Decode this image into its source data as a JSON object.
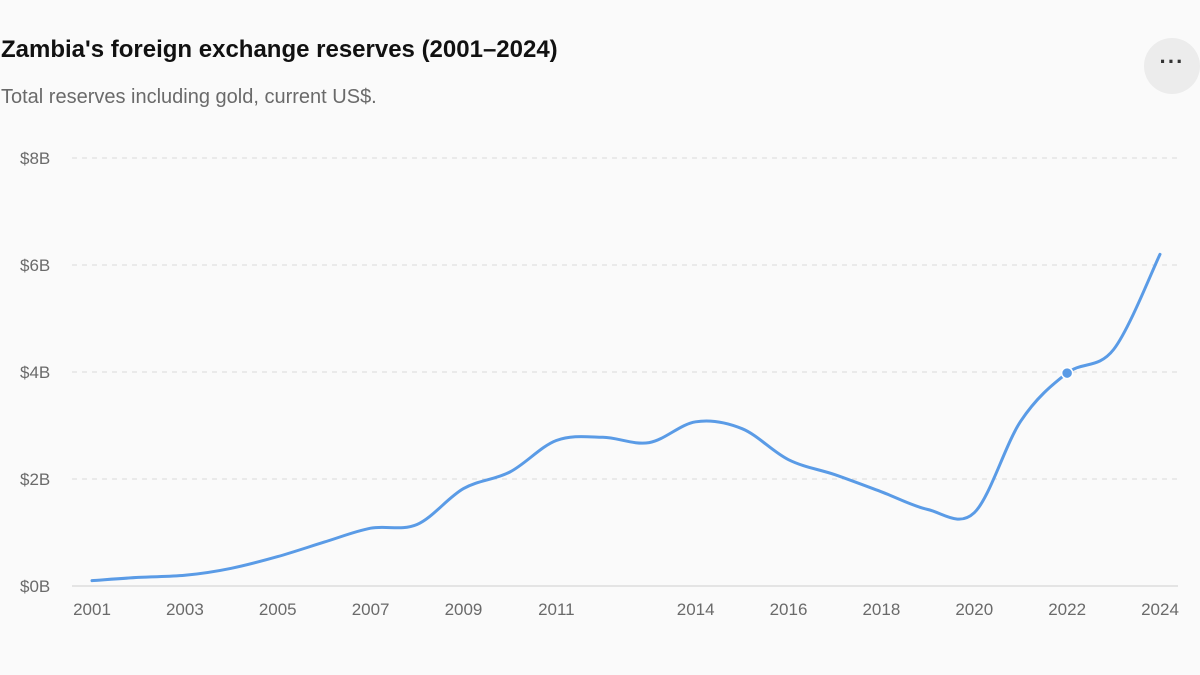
{
  "header": {
    "title": "Zambia's foreign exchange reserves (2001–2024)",
    "subtitle": "Total reserves including gold, current US$.",
    "more_icon": "more-horizontal-icon",
    "more_glyph": "···"
  },
  "colors": {
    "line": "#5a9be6",
    "grid": "#d9d9d9",
    "text_primary": "#111111",
    "text_secondary": "#6a6a6a"
  },
  "chart_data": {
    "type": "line",
    "title": "Zambia's foreign exchange reserves (2001–2024)",
    "subtitle": "Total reserves including gold, current US$.",
    "xlabel": "",
    "ylabel": "",
    "ylim": [
      0,
      8
    ],
    "y_unit": "billion US$",
    "yticks": [
      0,
      2,
      4,
      6,
      8
    ],
    "ytick_labels": [
      "$0B",
      "$2B",
      "$4B",
      "$6B",
      "$8B"
    ],
    "xticks": [
      2001,
      2003,
      2005,
      2007,
      2009,
      2011,
      2014,
      2016,
      2018,
      2020,
      2022,
      2024
    ],
    "grid": true,
    "series": [
      {
        "x": [
          2001,
          2002,
          2003,
          2004,
          2005,
          2006,
          2007,
          2008,
          2009,
          2010,
          2011,
          2012,
          2013,
          2014,
          2015,
          2016,
          2017,
          2018,
          2019,
          2020,
          2021,
          2022,
          2023,
          2024
        ],
        "values": [
          0.1,
          0.16,
          0.2,
          0.33,
          0.55,
          0.82,
          1.08,
          1.15,
          1.82,
          2.13,
          2.72,
          2.78,
          2.68,
          3.07,
          2.94,
          2.36,
          2.08,
          1.76,
          1.43,
          1.37,
          3.08,
          3.98,
          4.42,
          6.2
        ]
      }
    ],
    "highlight_point": {
      "x": 2022,
      "y": 3.98
    }
  }
}
